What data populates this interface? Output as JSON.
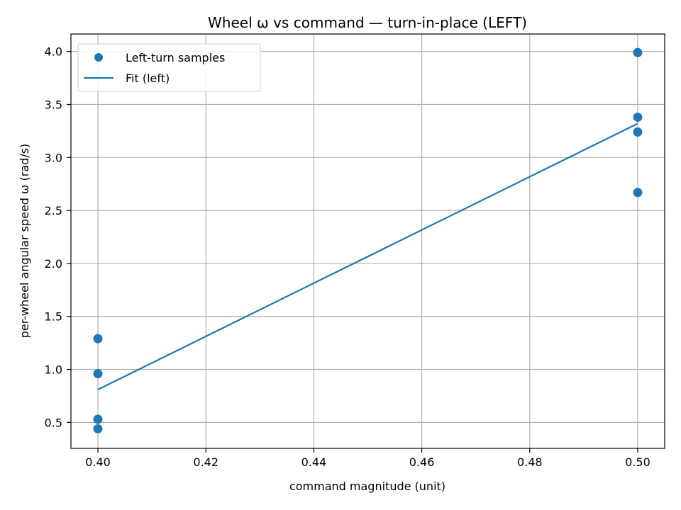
{
  "chart_data": {
    "type": "scatter",
    "title": "Wheel ω vs command — turn-in-place (LEFT)",
    "xlabel": "command magnitude (unit)",
    "ylabel": "per-wheel angular speed ω (rad/s)",
    "xlim": [
      0.395,
      0.505
    ],
    "ylim": [
      0.255,
      4.165
    ],
    "x_ticks": [
      0.4,
      0.42,
      0.44,
      0.46,
      0.48,
      0.5
    ],
    "x_tick_labels": [
      "0.40",
      "0.42",
      "0.44",
      "0.46",
      "0.48",
      "0.50"
    ],
    "y_ticks": [
      0.5,
      1.0,
      1.5,
      2.0,
      2.5,
      3.0,
      3.5,
      4.0
    ],
    "y_tick_labels": [
      "0.5",
      "1.0",
      "1.5",
      "2.0",
      "2.5",
      "3.0",
      "3.5",
      "4.0"
    ],
    "grid": true,
    "legend_position": "top-left",
    "series": [
      {
        "name": "Left-turn samples",
        "kind": "scatter",
        "color": "#1f77b4",
        "x": [
          0.4,
          0.4,
          0.4,
          0.4,
          0.5,
          0.5,
          0.5,
          0.5
        ],
        "y": [
          1.29,
          0.96,
          0.53,
          0.44,
          3.99,
          3.38,
          3.24,
          2.67
        ]
      },
      {
        "name": "Fit (left)",
        "kind": "line",
        "color": "#1f77b4",
        "x": [
          0.4,
          0.5
        ],
        "y": [
          0.81,
          3.32
        ]
      }
    ]
  }
}
